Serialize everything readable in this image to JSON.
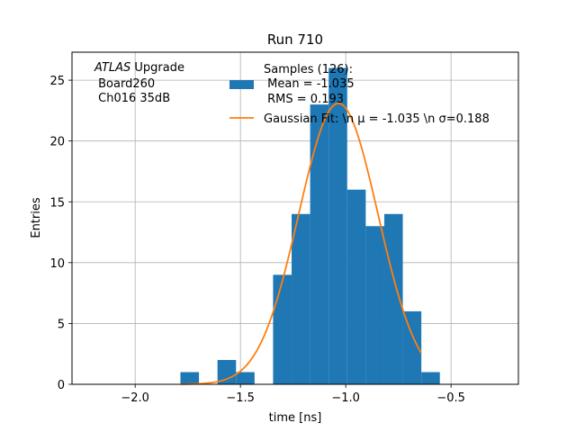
{
  "chart_data": {
    "type": "bar",
    "title": "Run 710",
    "xlabel": "time [ns]",
    "ylabel": "Entries",
    "xlim": [
      -2.3,
      -0.18
    ],
    "ylim": [
      0,
      27.3
    ],
    "grid": true,
    "x_ticks": [
      {
        "value": -2.0,
        "label": "−2.0"
      },
      {
        "value": -1.5,
        "label": "−1.5"
      },
      {
        "value": -1.0,
        "label": "−1.0"
      },
      {
        "value": -0.5,
        "label": "−0.5"
      }
    ],
    "y_ticks": [
      {
        "value": 0,
        "label": "0"
      },
      {
        "value": 5,
        "label": "5"
      },
      {
        "value": 10,
        "label": "10"
      },
      {
        "value": 15,
        "label": "15"
      },
      {
        "value": 20,
        "label": "20"
      },
      {
        "value": 25,
        "label": "25"
      }
    ],
    "histogram": {
      "name": "Samples (126):",
      "color": "#1f77b4",
      "bin_edges": [
        -1.785,
        -1.697,
        -1.609,
        -1.521,
        -1.433,
        -1.345,
        -1.257,
        -1.169,
        -1.081,
        -0.993,
        -0.905,
        -0.817,
        -0.729,
        -0.641,
        -0.553
      ],
      "counts": [
        1,
        0,
        2,
        1,
        0,
        9,
        14,
        23,
        26,
        16,
        13,
        14,
        6,
        1
      ]
    },
    "fit": {
      "color": "#ff7f0e",
      "mu": -1.035,
      "sigma": 0.188,
      "amplitude": 23.1,
      "x_range": [
        -1.785,
        -0.641
      ]
    },
    "legend": {
      "position": "top-right",
      "hist_lines": [
        "Samples (126):",
        " Mean = -1.035",
        " RMS = 0.193"
      ],
      "fit_label": "Gaussian Fit: \\n μ = -1.035 \\n σ=0.188"
    },
    "annotation": {
      "italic": "ATLAS",
      "rest": " Upgrade",
      "lines": [
        " Board260",
        " Ch016 35dB"
      ]
    }
  }
}
